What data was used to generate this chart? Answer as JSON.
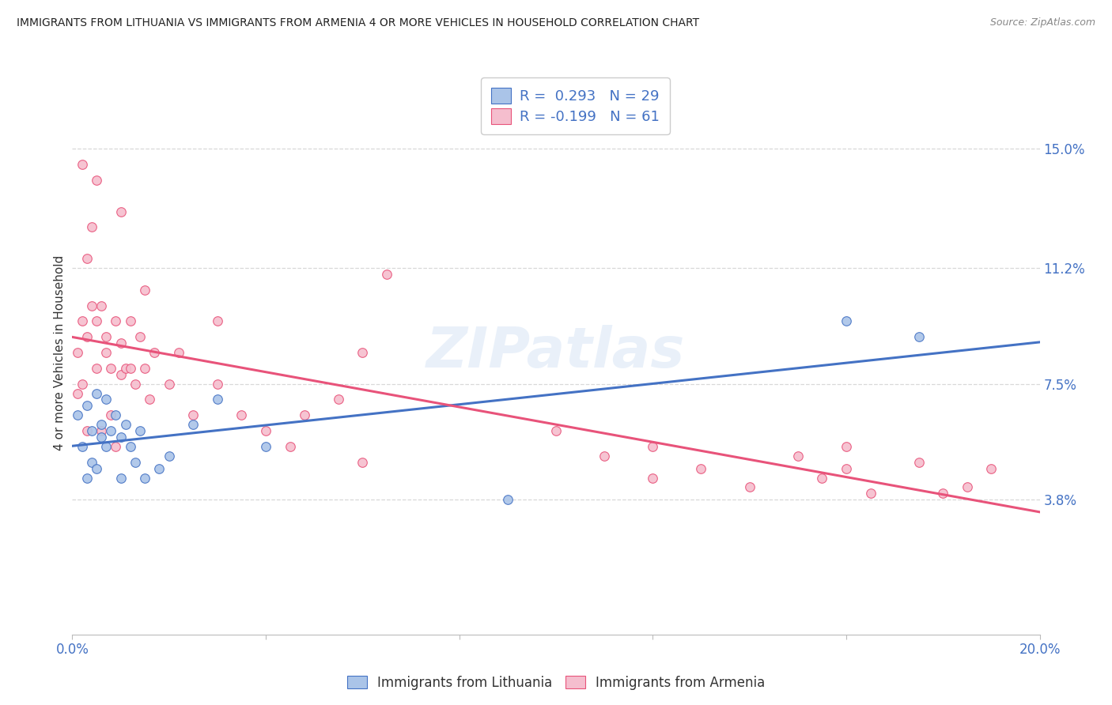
{
  "title": "IMMIGRANTS FROM LITHUANIA VS IMMIGRANTS FROM ARMENIA 4 OR MORE VEHICLES IN HOUSEHOLD CORRELATION CHART",
  "source": "Source: ZipAtlas.com",
  "ylabel": "4 or more Vehicles in Household",
  "xlim": [
    0.0,
    0.2
  ],
  "ylim": [
    -0.005,
    0.175
  ],
  "yticks_right": [
    0.038,
    0.075,
    0.112,
    0.15
  ],
  "ytick_labels_right": [
    "3.8%",
    "7.5%",
    "11.2%",
    "15.0%"
  ],
  "grid_color": "#d8d8d8",
  "background_color": "#ffffff",
  "lithuania_color": "#aac4e8",
  "armenia_color": "#f5bece",
  "lithuania_line_color": "#4472c4",
  "armenia_line_color": "#e8537a",
  "legend_label_1": "R =  0.293   N = 29",
  "legend_label_2": "R = -0.199   N = 61",
  "watermark": "ZIPatlas",
  "scatter_size": 70,
  "lithuania_x": [
    0.001,
    0.002,
    0.003,
    0.003,
    0.004,
    0.004,
    0.005,
    0.005,
    0.006,
    0.006,
    0.007,
    0.007,
    0.008,
    0.009,
    0.01,
    0.01,
    0.011,
    0.012,
    0.013,
    0.014,
    0.015,
    0.018,
    0.02,
    0.025,
    0.03,
    0.04,
    0.09,
    0.16,
    0.175
  ],
  "lithuania_y": [
    0.065,
    0.055,
    0.068,
    0.045,
    0.06,
    0.05,
    0.072,
    0.048,
    0.062,
    0.058,
    0.07,
    0.055,
    0.06,
    0.065,
    0.058,
    0.045,
    0.062,
    0.055,
    0.05,
    0.06,
    0.045,
    0.048,
    0.052,
    0.062,
    0.07,
    0.055,
    0.038,
    0.095,
    0.09
  ],
  "armenia_x": [
    0.001,
    0.001,
    0.002,
    0.002,
    0.003,
    0.003,
    0.003,
    0.004,
    0.004,
    0.005,
    0.005,
    0.005,
    0.006,
    0.006,
    0.007,
    0.007,
    0.008,
    0.008,
    0.009,
    0.009,
    0.01,
    0.01,
    0.011,
    0.012,
    0.012,
    0.013,
    0.014,
    0.015,
    0.016,
    0.017,
    0.02,
    0.022,
    0.025,
    0.03,
    0.035,
    0.04,
    0.045,
    0.048,
    0.055,
    0.06,
    0.065,
    0.1,
    0.11,
    0.12,
    0.13,
    0.14,
    0.15,
    0.155,
    0.16,
    0.165,
    0.175,
    0.18,
    0.185,
    0.19,
    0.002,
    0.01,
    0.015,
    0.03,
    0.06,
    0.12,
    0.16
  ],
  "armenia_y": [
    0.072,
    0.085,
    0.075,
    0.095,
    0.115,
    0.09,
    0.06,
    0.1,
    0.125,
    0.14,
    0.08,
    0.095,
    0.06,
    0.1,
    0.085,
    0.09,
    0.065,
    0.08,
    0.055,
    0.095,
    0.088,
    0.078,
    0.08,
    0.095,
    0.08,
    0.075,
    0.09,
    0.08,
    0.07,
    0.085,
    0.075,
    0.085,
    0.065,
    0.075,
    0.065,
    0.06,
    0.055,
    0.065,
    0.07,
    0.05,
    0.11,
    0.06,
    0.052,
    0.055,
    0.048,
    0.042,
    0.052,
    0.045,
    0.048,
    0.04,
    0.05,
    0.04,
    0.042,
    0.048,
    0.145,
    0.13,
    0.105,
    0.095,
    0.085,
    0.045,
    0.055
  ]
}
